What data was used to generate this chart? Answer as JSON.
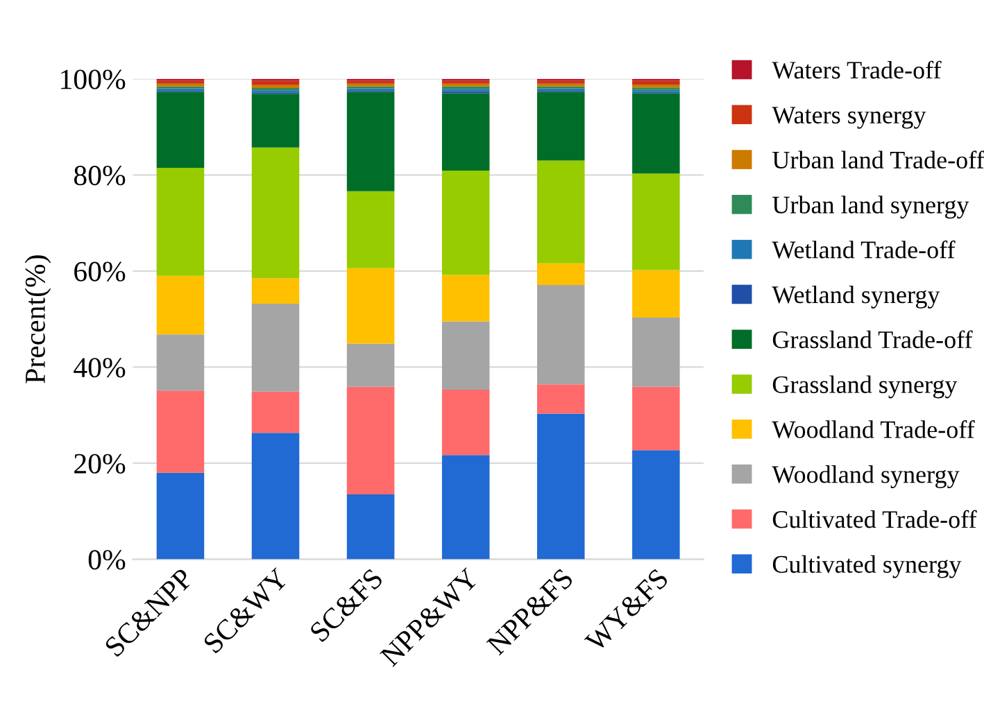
{
  "chart_data": {
    "type": "bar",
    "stacked": true,
    "ylabel": "Precent(%)",
    "categories": [
      "SC&NPP",
      "SC&WY",
      "SC&FS",
      "NPP&WY",
      "NPP&FS",
      "WY&FS"
    ],
    "series": [
      {
        "name": "Cultivated synergy",
        "color": "#2169d3",
        "values": [
          18.0,
          26.3,
          13.5,
          21.7,
          30.3,
          22.7
        ]
      },
      {
        "name": "Cultivated Trade-off",
        "color": "#ff6b6b",
        "values": [
          17.1,
          8.6,
          22.4,
          13.6,
          6.1,
          13.2
        ]
      },
      {
        "name": "Woodland synergy",
        "color": "#a5a5a5",
        "values": [
          11.7,
          18.3,
          9.0,
          14.2,
          20.7,
          14.4
        ]
      },
      {
        "name": "Woodland Trade-off",
        "color": "#ffc000",
        "values": [
          12.2,
          5.3,
          15.7,
          9.7,
          4.5,
          9.9
        ]
      },
      {
        "name": "Grassland synergy",
        "color": "#96cc00",
        "values": [
          22.5,
          27.2,
          16.0,
          21.7,
          21.4,
          20.1
        ]
      },
      {
        "name": "Grassland Trade-off",
        "color": "#006e28",
        "values": [
          15.8,
          11.2,
          20.7,
          16.1,
          14.3,
          16.7
        ]
      },
      {
        "name": "Wetland synergy",
        "color": "#1f4fa8",
        "values": [
          0.3,
          0.3,
          0.3,
          0.4,
          0.3,
          0.3
        ]
      },
      {
        "name": "Wetland Trade-off",
        "color": "#1f78b4",
        "values": [
          0.4,
          0.4,
          0.4,
          0.5,
          0.4,
          0.4
        ]
      },
      {
        "name": "Urban land synergy",
        "color": "#2e8b57",
        "values": [
          0.4,
          0.5,
          0.4,
          0.5,
          0.4,
          0.5
        ]
      },
      {
        "name": "Urban land Trade-off",
        "color": "#cc7a00",
        "values": [
          0.6,
          0.6,
          0.6,
          0.6,
          0.6,
          0.6
        ]
      },
      {
        "name": "Waters synergy",
        "color": "#cc3311",
        "values": [
          0.6,
          0.9,
          0.6,
          0.6,
          0.6,
          0.8
        ]
      },
      {
        "name": "Waters Trade-off",
        "color": "#b5142b",
        "values": [
          0.4,
          0.4,
          0.4,
          0.4,
          0.4,
          0.4
        ]
      }
    ],
    "ylim": [
      0,
      100
    ],
    "yticks": [
      {
        "value": 0,
        "label": "0%"
      },
      {
        "value": 20,
        "label": "20%"
      },
      {
        "value": 40,
        "label": "40%"
      },
      {
        "value": 60,
        "label": "60%"
      },
      {
        "value": 80,
        "label": "80%"
      },
      {
        "value": 100,
        "label": "100%"
      }
    ],
    "grid": "y",
    "legend": "right"
  }
}
